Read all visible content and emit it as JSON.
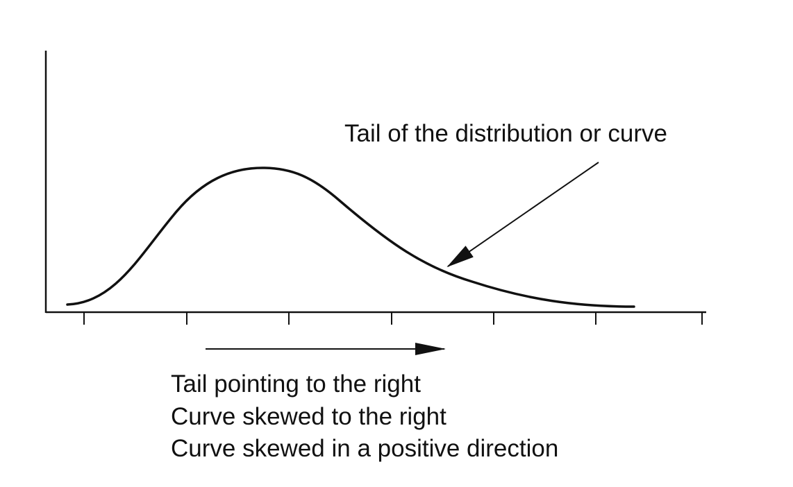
{
  "annotations": {
    "tail_label": "Tail of the distribution or curve",
    "caption_lines": [
      "Tail pointing to the right",
      "Curve skewed to the right",
      "Curve skewed in a positive direction"
    ]
  },
  "diagram": {
    "type": "positively-skewed-distribution",
    "x_axis_tick_count": 7,
    "line_color": "#111111",
    "background_color": "#ffffff"
  }
}
